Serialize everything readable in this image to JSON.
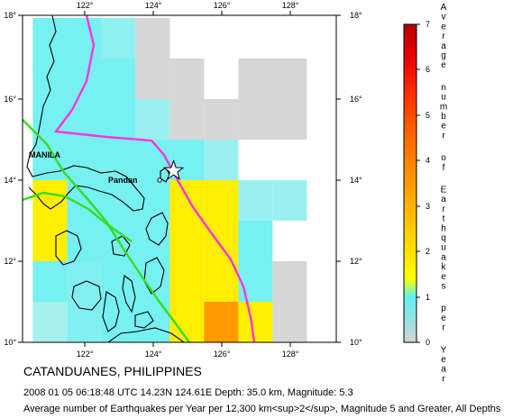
{
  "map": {
    "x_ticks": [
      "122°",
      "124°",
      "126°",
      "128°"
    ],
    "y_ticks": [
      "10°",
      "12°",
      "14°",
      "16°",
      "18°"
    ],
    "labels": {
      "manila": "MANILA",
      "pandan": "Pandan"
    }
  },
  "grid_cells": [
    {
      "lon": 121,
      "lat": 17.5,
      "level": 0.8
    },
    {
      "lon": 121,
      "lat": 16.5,
      "level": 0.8
    },
    {
      "lon": 121,
      "lat": 15.5,
      "level": 0.8
    },
    {
      "lon": 121,
      "lat": 14.5,
      "level": 0.8
    },
    {
      "lon": 121,
      "lat": 13.5,
      "level": 1.6
    },
    {
      "lon": 121,
      "lat": 12.5,
      "level": 1.6
    },
    {
      "lon": 121,
      "lat": 11.5,
      "level": 0.8
    },
    {
      "lon": 121,
      "lat": 10.5,
      "level": 0.4
    },
    {
      "lon": 122,
      "lat": 17.5,
      "level": 0.8
    },
    {
      "lon": 122,
      "lat": 16.5,
      "level": 0.8
    },
    {
      "lon": 122,
      "lat": 15.5,
      "level": 0.8
    },
    {
      "lon": 122,
      "lat": 14.5,
      "level": 0.8
    },
    {
      "lon": 122,
      "lat": 13.5,
      "level": 0.8
    },
    {
      "lon": 122,
      "lat": 12.5,
      "level": 0.8
    },
    {
      "lon": 122,
      "lat": 11.5,
      "level": 0.7
    },
    {
      "lon": 122,
      "lat": 10.5,
      "level": 0.7
    },
    {
      "lon": 123,
      "lat": 17.5,
      "level": 0.6
    },
    {
      "lon": 123,
      "lat": 16.5,
      "level": 0.8
    },
    {
      "lon": 123,
      "lat": 15.5,
      "level": 0.8
    },
    {
      "lon": 123,
      "lat": 14.5,
      "level": 0.8
    },
    {
      "lon": 123,
      "lat": 13.5,
      "level": 0.8
    },
    {
      "lon": 123,
      "lat": 12.5,
      "level": 0.8
    },
    {
      "lon": 123,
      "lat": 11.5,
      "level": 0.8
    },
    {
      "lon": 123,
      "lat": 10.5,
      "level": 0.8
    },
    {
      "lon": 124,
      "lat": 17.5,
      "level": 0.0
    },
    {
      "lon": 124,
      "lat": 16.5,
      "level": 0.0
    },
    {
      "lon": 124,
      "lat": 15.5,
      "level": 0.5
    },
    {
      "lon": 124,
      "lat": 14.5,
      "level": 0.8
    },
    {
      "lon": 124,
      "lat": 13.5,
      "level": 0.8
    },
    {
      "lon": 124,
      "lat": 12.5,
      "level": 0.8
    },
    {
      "lon": 124,
      "lat": 11.5,
      "level": 0.8
    },
    {
      "lon": 124,
      "lat": 10.5,
      "level": 0.8
    },
    {
      "lon": 125,
      "lat": 16.5,
      "level": 0.0
    },
    {
      "lon": 125,
      "lat": 15.5,
      "level": 0.0
    },
    {
      "lon": 125,
      "lat": 14.5,
      "level": 0.8
    },
    {
      "lon": 125,
      "lat": 13.5,
      "level": 1.6
    },
    {
      "lon": 125,
      "lat": 12.5,
      "level": 1.6
    },
    {
      "lon": 125,
      "lat": 11.5,
      "level": 1.6
    },
    {
      "lon": 125,
      "lat": 10.5,
      "level": 1.6
    },
    {
      "lon": 126,
      "lat": 15.5,
      "level": 0.0
    },
    {
      "lon": 126,
      "lat": 14.5,
      "level": 0.5
    },
    {
      "lon": 126,
      "lat": 13.5,
      "level": 1.6
    },
    {
      "lon": 126,
      "lat": 12.5,
      "level": 1.6
    },
    {
      "lon": 126,
      "lat": 11.5,
      "level": 1.6
    },
    {
      "lon": 126,
      "lat": 10.5,
      "level": 3.2
    },
    {
      "lon": 127,
      "lat": 16.5,
      "level": 0.0
    },
    {
      "lon": 127,
      "lat": 15.5,
      "level": 0.0
    },
    {
      "lon": 127,
      "lat": 13.5,
      "level": 0.5
    },
    {
      "lon": 127,
      "lat": 12.5,
      "level": 0.8
    },
    {
      "lon": 127,
      "lat": 11.5,
      "level": 0.8
    },
    {
      "lon": 127,
      "lat": 10.5,
      "level": 1.6
    },
    {
      "lon": 128,
      "lat": 16.5,
      "level": 0.0
    },
    {
      "lon": 128,
      "lat": 15.5,
      "level": 0.0
    },
    {
      "lon": 128,
      "lat": 13.5,
      "level": 0.5
    },
    {
      "lon": 128,
      "lat": 11.5,
      "level": 0.0
    },
    {
      "lon": 128,
      "lat": 10.5,
      "level": 0.0
    }
  ],
  "epicenter": {
    "lon": 124.61,
    "lat": 14.23
  },
  "pandan_dot": {
    "lon": 124.2,
    "lat": 14.0
  },
  "colorbar": {
    "ticks": [
      "0",
      "1",
      "2",
      "3",
      "4",
      "5",
      "6",
      "7"
    ],
    "title": "Average number of Earthquakes per Year"
  },
  "caption": {
    "title": "CATANDUANES, PHILIPPINES",
    "event": "2008 01 05 06:18:48 UTC 14.23N 124.61E Depth: 35.0 km, Magnitude: 5.3",
    "note": "Average number of Earthquakes per Year per 12,300 km<sup>2</sup>, Magnitude 5 and Greater, All Depths"
  },
  "colors": {
    "gray": "#d6d6d6",
    "cyan": "#5ef0f0",
    "yellow": "#ffee00",
    "orange": "#ff9a00",
    "trench": "#ff33dd",
    "fault": "#33dd22"
  }
}
